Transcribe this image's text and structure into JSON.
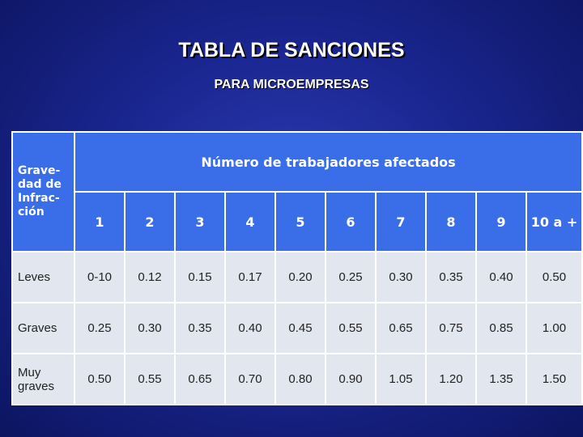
{
  "title": "TABLA DE SANCIONES",
  "subtitle": "PARA MICROEMPRESAS",
  "table": {
    "corner_header": "Grave-dad de Infrac-ción",
    "group_header": "Número de trabajadores afectados",
    "columns": [
      "1",
      "2",
      "3",
      "4",
      "5",
      "6",
      "7",
      "8",
      "9",
      "10 a +"
    ],
    "rows": [
      {
        "label": "Leves",
        "values": [
          "0-10",
          "0.12",
          "0.15",
          "0.17",
          "0.20",
          "0.25",
          "0.30",
          "0.35",
          "0.40",
          "0.50"
        ]
      },
      {
        "label": "Graves",
        "values": [
          "0.25",
          "0.30",
          "0.35",
          "0.40",
          "0.45",
          "0.55",
          "0.65",
          "0.75",
          "0.85",
          "1.00"
        ]
      },
      {
        "label": "Muy graves",
        "values": [
          "0.50",
          "0.55",
          "0.65",
          "0.70",
          "0.80",
          "0.90",
          "1.05",
          "1.20",
          "1.35",
          "1.50"
        ]
      }
    ]
  },
  "colors": {
    "background": "#1a2690",
    "header_fill": "#3a6de8",
    "body_fill": "#e2e6ef",
    "text_light": "#ffffff"
  }
}
